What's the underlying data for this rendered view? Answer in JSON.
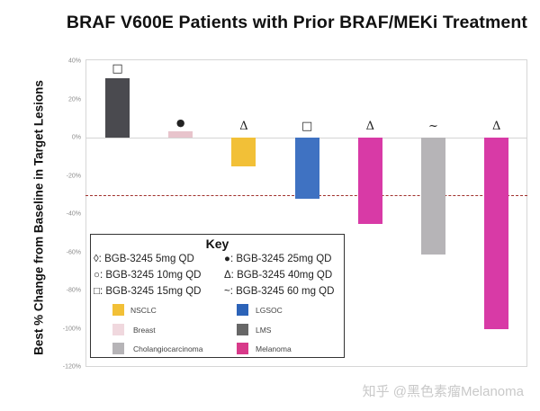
{
  "chart_data": {
    "type": "bar",
    "title": "BRAF V600E Patients with Prior BRAF/MEKi Treatment",
    "xlabel": "",
    "ylabel": "Best % Change from Baseline in Target Lesions",
    "ylim": [
      -120,
      40
    ],
    "yticks": [
      "40%",
      "20%",
      "0%",
      "-20%",
      "-40%",
      "-60%",
      "-80%",
      "-100%",
      "-120%"
    ],
    "threshold_line": {
      "value": -30,
      "style": "dashed",
      "color": "#a0302c"
    },
    "bars": [
      {
        "patient": 1,
        "tumor_type": "LMS",
        "dose": "BGB-3245 15mg QD",
        "marker": "□",
        "value": 31,
        "color": "#4a4a4f"
      },
      {
        "patient": 2,
        "tumor_type": "Breast",
        "dose": "BGB-3245 25mg QD",
        "marker": "●",
        "value": 3.5,
        "color": "#e8c4cc"
      },
      {
        "patient": 3,
        "tumor_type": "NSCLC",
        "dose": "BGB-3245 40mg QD",
        "marker": "Δ",
        "value": -15,
        "color": "#f2c037"
      },
      {
        "patient": 4,
        "tumor_type": "LGSOC",
        "dose": "BGB-3245 15mg QD",
        "marker": "□",
        "value": -32,
        "color": "#3f72c2"
      },
      {
        "patient": 5,
        "tumor_type": "Melanoma",
        "dose": "BGB-3245 40mg QD",
        "marker": "Δ",
        "value": -45,
        "color": "#d83aa6"
      },
      {
        "patient": 6,
        "tumor_type": "Cholangiocarcinoma",
        "dose": "BGB-3245 60 mg QD",
        "marker": "~",
        "value": -61,
        "color": "#b6b4b7"
      },
      {
        "patient": 7,
        "tumor_type": "Melanoma",
        "dose": "BGB-3245 40mg QD",
        "marker": "Δ",
        "value": -100,
        "color": "#d83aa6"
      }
    ],
    "legend": {
      "title": "Key",
      "doses": [
        {
          "symbol": "◊",
          "label": "BGB-3245 5mg QD"
        },
        {
          "symbol": "○",
          "label": "BGB-3245 10mg QD"
        },
        {
          "symbol": "□",
          "label": "BGB-3245 15mg QD"
        },
        {
          "symbol": "●",
          "label": "BGB-3245 25mg QD"
        },
        {
          "symbol": "Δ",
          "label": "BGB-3245 40mg QD"
        },
        {
          "symbol": "~",
          "label": "BGB-3245 60 mg QD"
        }
      ],
      "tumor_types": [
        {
          "label": "NSCLC",
          "color": "#f2c037"
        },
        {
          "label": "Breast",
          "color": "#f0d8de"
        },
        {
          "label": "Cholangiocarcinoma",
          "color": "#b6b4b7"
        },
        {
          "label": "LGSOC",
          "color": "#2c63b8"
        },
        {
          "label": "LMS",
          "color": "#676767"
        },
        {
          "label": "Melanoma",
          "color": "#d83a8a"
        }
      ]
    }
  },
  "key_lines": {
    "d1": "◊: BGB-3245 5mg QD",
    "d2": "○: BGB-3245 10mg QD",
    "d3": "□: BGB-3245 15mg QD",
    "d4": "●: BGB-3245 25mg QD",
    "d5": "Δ: BGB-3245 40mg QD",
    "d6": "~: BGB-3245 60 mg QD"
  },
  "watermark": "知乎 @黑色素瘤Melanoma"
}
